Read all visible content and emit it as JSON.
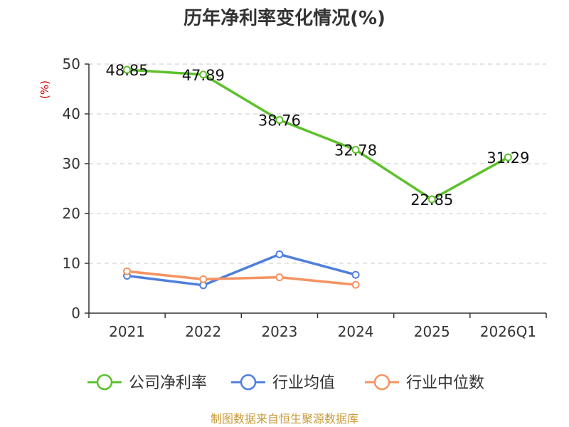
{
  "chart_data": {
    "type": "line",
    "title": "历年净利率变化情况(%)",
    "ylabel": "(%)",
    "ylim": [
      0,
      50
    ],
    "yticks": [
      0,
      10,
      20,
      30,
      40,
      50
    ],
    "categories": [
      "2021",
      "2022",
      "2023",
      "2024",
      "2025",
      "2026Q1"
    ],
    "grid": true,
    "legend_position": "bottom",
    "series": [
      {
        "name": "公司净利率",
        "color": "#5cc12b",
        "values": [
          48.85,
          47.89,
          38.76,
          32.78,
          22.85,
          31.29
        ],
        "labels": [
          "48.85",
          "47.89",
          "38.76",
          "32.78",
          "22.85",
          "31.29"
        ]
      },
      {
        "name": "行业均值",
        "color": "#4f7fdb",
        "values": [
          7.5,
          5.6,
          11.8,
          7.7,
          null,
          null
        ]
      },
      {
        "name": "行业中位数",
        "color": "#f59362",
        "values": [
          8.4,
          6.8,
          7.2,
          5.7,
          null,
          null
        ]
      }
    ]
  },
  "source": "制图数据来自恒生聚源数据库"
}
